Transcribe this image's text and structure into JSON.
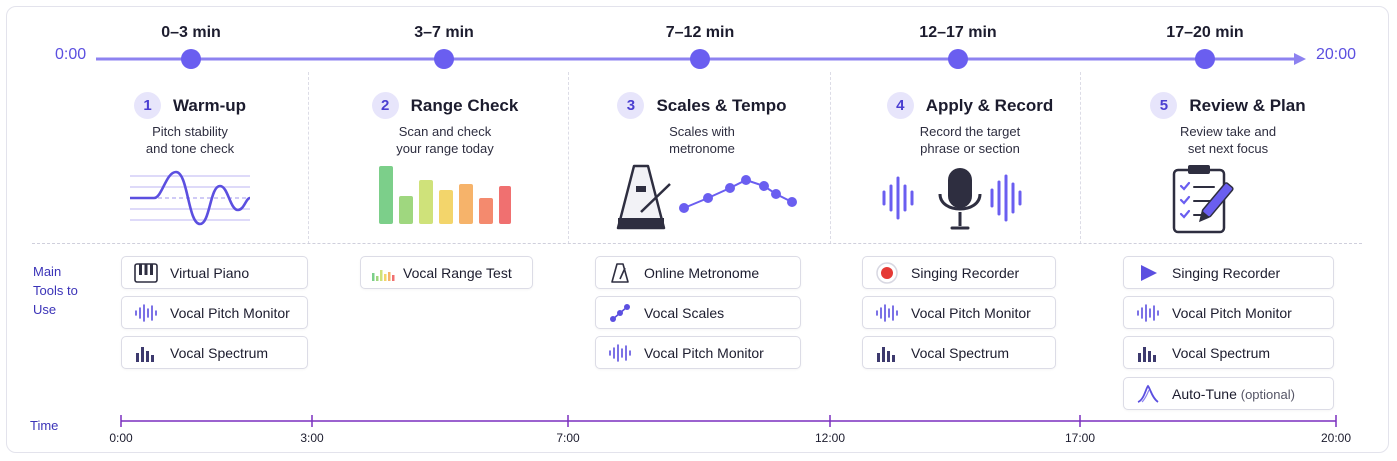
{
  "top_timeline": {
    "start": "0:00",
    "end": "20:00",
    "segments": [
      "0–3 min",
      "3–7 min",
      "7–12 min",
      "12–17 min",
      "17–20 min"
    ]
  },
  "steps": [
    {
      "num": "1",
      "title": "Warm-up",
      "desc": "Pitch stability\nand tone check",
      "illustration": "pitch-wave-icon"
    },
    {
      "num": "2",
      "title": "Range Check",
      "desc": "Scan and check\nyour range today",
      "illustration": "range-bars-icon"
    },
    {
      "num": "3",
      "title": "Scales & Tempo",
      "desc": "Scales with\nmetronome",
      "illustration": "metronome-scale-icon"
    },
    {
      "num": "4",
      "title": "Apply & Record",
      "desc": "Record the target\nphrase or section",
      "illustration": "microphone-icon"
    },
    {
      "num": "5",
      "title": "Review & Plan",
      "desc": "Review take and\nset next focus",
      "illustration": "checklist-icon"
    }
  ],
  "tools_label": "Main\nTools to\nUse",
  "tools": [
    [
      {
        "label": "Virtual Piano",
        "icon": "piano-icon"
      },
      {
        "label": "Vocal Pitch Monitor",
        "icon": "waveform-icon"
      },
      {
        "label": "Vocal Spectrum",
        "icon": "spectrum-icon"
      }
    ],
    [
      {
        "label": "Vocal Range Test",
        "icon": "range-test-icon"
      }
    ],
    [
      {
        "label": "Online Metronome",
        "icon": "metronome-icon"
      },
      {
        "label": "Vocal Scales",
        "icon": "scales-icon"
      },
      {
        "label": "Vocal Pitch Monitor",
        "icon": "waveform-icon"
      }
    ],
    [
      {
        "label": "Singing Recorder",
        "icon": "record-icon"
      },
      {
        "label": "Vocal Pitch Monitor",
        "icon": "waveform-icon"
      },
      {
        "label": "Vocal Spectrum",
        "icon": "spectrum-icon"
      }
    ],
    [
      {
        "label": "Singing Recorder",
        "icon": "play-icon"
      },
      {
        "label": "Vocal Pitch Monitor",
        "icon": "waveform-icon"
      },
      {
        "label": "Vocal Spectrum",
        "icon": "spectrum-icon"
      },
      {
        "label": "Auto-Tune",
        "optional": "(optional)",
        "icon": "autotune-icon"
      }
    ]
  ],
  "bottom_timeline": {
    "label": "Time",
    "ticks": [
      "0:00",
      "3:00",
      "7:00",
      "12:00",
      "17:00",
      "20:00"
    ]
  },
  "colors": {
    "accent": "#5b4fe0",
    "accent_light": "#8d82f0",
    "record_red": "#e53935"
  }
}
